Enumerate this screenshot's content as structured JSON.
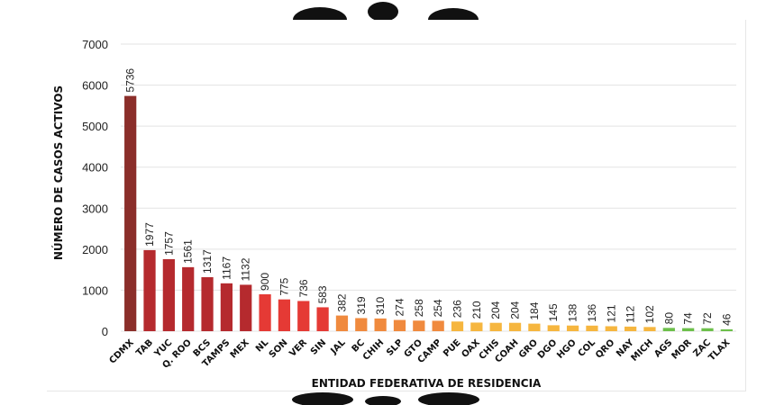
{
  "chart_data": {
    "type": "bar",
    "title": "",
    "xlabel": "ENTIDAD FEDERATIVA DE RESIDENCIA",
    "ylabel": "NÚMERO DE CASOS ACTIVOS",
    "ylim": [
      0,
      7000
    ],
    "yticks": [
      "0",
      "1000",
      "2000",
      "3000",
      "4000",
      "5000",
      "6000",
      "7000"
    ],
    "grid": true,
    "legend": "none",
    "categories": [
      "CDMX",
      "TAB",
      "YUC",
      "Q. ROO",
      "BCS",
      "TAMPS",
      "MEX",
      "NL",
      "SON",
      "VER",
      "SIN",
      "JAL",
      "BC",
      "CHIH",
      "SLP",
      "GTO",
      "CAMP",
      "PUE",
      "OAX",
      "CHIS",
      "COAH",
      "GRO",
      "DGO",
      "HGO",
      "COL",
      "QRO",
      "NAY",
      "MICH",
      "AGS",
      "MOR",
      "ZAC",
      "TLAX"
    ],
    "values": [
      5736,
      1977,
      1757,
      1561,
      1317,
      1167,
      1132,
      900,
      775,
      736,
      583,
      382,
      319,
      310,
      274,
      258,
      254,
      236,
      210,
      204,
      204,
      184,
      145,
      138,
      136,
      121,
      112,
      102,
      80,
      74,
      72,
      46
    ],
    "colors": [
      "#8b2e2a",
      "#b52a2e",
      "#b52a2e",
      "#b52a2e",
      "#b52a2e",
      "#b52a2e",
      "#b52a2e",
      "#e53a35",
      "#e53a35",
      "#e53a35",
      "#e53a35",
      "#f08a3e",
      "#f08a3e",
      "#f08a3e",
      "#f08a3e",
      "#f08a3e",
      "#f08a3e",
      "#f6b63f",
      "#f6b63f",
      "#f6b63f",
      "#f6b63f",
      "#f6b63f",
      "#f6b63f",
      "#f6b63f",
      "#f6b63f",
      "#f6b63f",
      "#f6b63f",
      "#f6b63f",
      "#6cbf4a",
      "#6cbf4a",
      "#6cbf4a",
      "#6cbf4a"
    ]
  }
}
